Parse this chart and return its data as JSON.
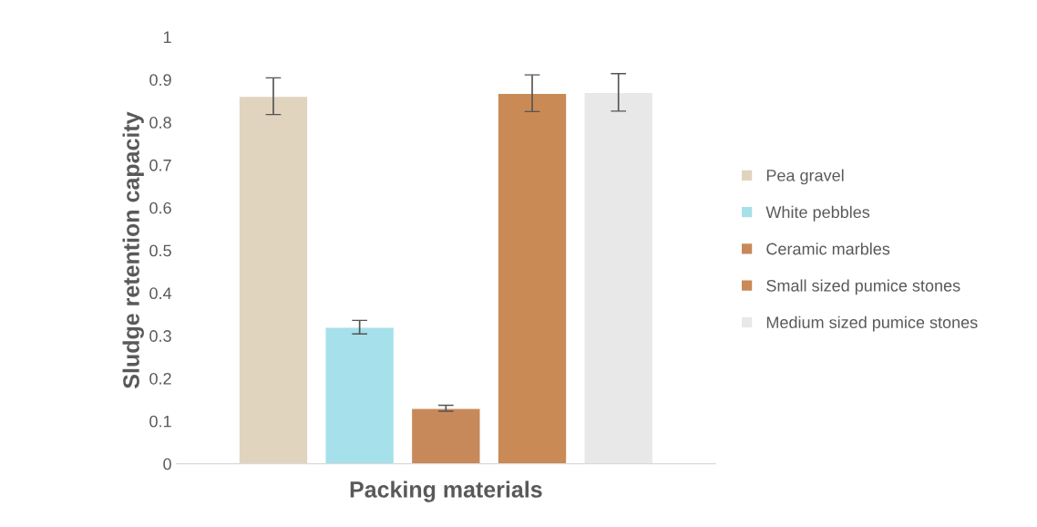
{
  "chart_data": {
    "type": "bar",
    "xlabel": "Packing materials",
    "ylabel": "Sludge retention capacity",
    "categories": [
      null
    ],
    "series": [
      {
        "name": "Pea gravel",
        "color": "#e0d4bf",
        "values": [
          0.861
        ],
        "errors": [
          0.043
        ]
      },
      {
        "name": "White pebbles",
        "color": "#a6e0ea",
        "values": [
          0.32
        ],
        "errors": [
          0.016
        ]
      },
      {
        "name": "Ceramic marbles",
        "color": "#c8895a",
        "values": [
          0.13
        ],
        "errors": [
          0.007
        ]
      },
      {
        "name": "Small sized pumice stones",
        "color": "#c98a55",
        "values": [
          0.868
        ],
        "errors": [
          0.043
        ]
      },
      {
        "name": "Medium sized pumice stones",
        "color": "#e8e8e8",
        "values": [
          0.87
        ],
        "errors": [
          0.044
        ]
      }
    ],
    "ylim": [
      0,
      1
    ],
    "yticks": [
      0,
      0.1,
      0.2,
      0.3,
      0.4,
      0.5,
      0.6,
      0.7,
      0.8,
      0.9,
      1
    ],
    "grid": false,
    "legend": "right"
  }
}
